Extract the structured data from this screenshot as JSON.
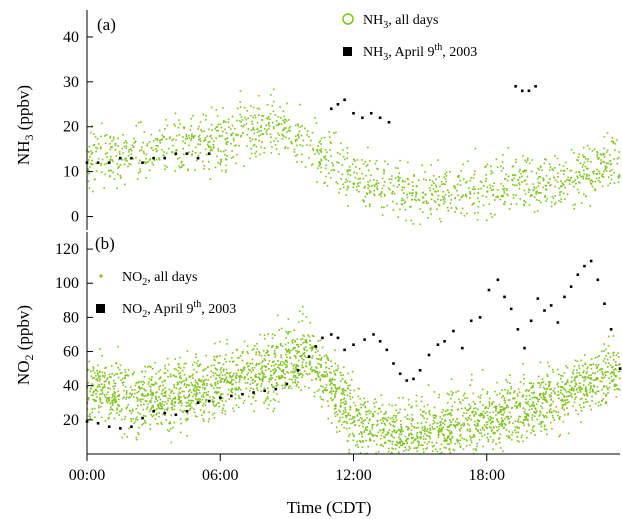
{
  "chart_data": [
    {
      "panel_label": "(a)",
      "type": "scatter",
      "ylabel_main": "NH",
      "ylabel_sub": "3",
      "ylabel_tail": " (ppbv)",
      "ylim": [
        -3,
        46
      ],
      "yticks": [
        0,
        10,
        20,
        30,
        40
      ],
      "xlim": [
        0,
        24
      ],
      "grid": false,
      "legend_position": "top-right",
      "colors": {
        "all_days": "#7dc21e",
        "april9": "#000000"
      },
      "legend": [
        {
          "main": "NH",
          "sub": "3",
          "tail": ", all days",
          "marker": "open-circle"
        },
        {
          "main": "NH",
          "sub": "3",
          "tail": ", April 9",
          "sup": "th",
          "tail2": ", 2003",
          "marker": "filled-square"
        }
      ],
      "series": [
        {
          "name": "NH3, all days",
          "x": [
            0,
            1,
            2,
            3,
            4,
            5,
            6,
            7,
            8,
            9,
            10,
            11,
            12,
            13,
            14,
            15,
            16,
            17,
            18,
            19,
            20,
            21,
            22,
            23,
            24
          ],
          "y": [
            13,
            13,
            14,
            15,
            15,
            16,
            17,
            19,
            20,
            20,
            15,
            12,
            9,
            7,
            6,
            5,
            5,
            6,
            7,
            8,
            8,
            8,
            9,
            11,
            12
          ]
        },
        {
          "name": "NH3, April 9th, 2003",
          "x": [
            0.0,
            0.5,
            1.0,
            1.5,
            2.0,
            2.5,
            3.0,
            3.5,
            4.0,
            4.5,
            5.0,
            5.5,
            11.0,
            11.3,
            11.6,
            12.0,
            12.4,
            12.8,
            13.2,
            13.6,
            19.3,
            19.6,
            19.9,
            20.2
          ],
          "y": [
            12,
            12,
            12,
            13,
            13,
            12,
            13,
            13,
            14,
            14,
            13,
            14,
            24,
            25,
            26,
            23,
            22,
            23,
            22,
            21,
            29,
            28,
            28,
            29
          ]
        }
      ]
    },
    {
      "panel_label": "(b)",
      "type": "scatter",
      "ylabel_main": "NO",
      "ylabel_sub": "2",
      "ylabel_tail": " (ppbv)",
      "xlabel": "Time (CDT)",
      "ylim": [
        0,
        130
      ],
      "yticks": [
        20,
        40,
        60,
        80,
        100,
        120
      ],
      "xlim": [
        0,
        24
      ],
      "xticks": [
        0,
        6,
        12,
        18
      ],
      "xtick_labels": [
        "00:00",
        "06:00",
        "12:00",
        "18:00"
      ],
      "grid": false,
      "legend_position": "top-left",
      "colors": {
        "all_days": "#7dc21e",
        "april9": "#000000"
      },
      "legend": [
        {
          "main": "NO",
          "sub": "2",
          "tail": ", all days",
          "marker": "small-dot"
        },
        {
          "main": "NO",
          "sub": "2",
          "tail": ", April 9",
          "sup": "th",
          "tail2": ", 2003",
          "marker": "filled-square"
        }
      ],
      "series": [
        {
          "name": "NO2, all days",
          "x": [
            0,
            1,
            2,
            3,
            4,
            5,
            6,
            7,
            8,
            9,
            10,
            11,
            12,
            13,
            14,
            15,
            16,
            17,
            18,
            19,
            20,
            21,
            22,
            23,
            24
          ],
          "y": [
            40,
            36,
            32,
            32,
            34,
            38,
            42,
            45,
            48,
            55,
            60,
            40,
            20,
            14,
            12,
            13,
            15,
            18,
            20,
            24,
            28,
            32,
            38,
            45,
            48
          ]
        },
        {
          "name": "NO2, April 9th, 2003",
          "x": [
            0.0,
            0.5,
            1.0,
            1.5,
            2.0,
            2.5,
            3.0,
            3.5,
            4.0,
            4.5,
            5.0,
            5.5,
            6.0,
            6.5,
            7.0,
            7.5,
            8.0,
            8.5,
            9.0,
            9.5,
            10.0,
            10.3,
            10.6,
            11.0,
            11.3,
            11.6,
            12.0,
            12.5,
            12.9,
            13.2,
            13.5,
            13.8,
            14.1,
            14.4,
            14.7,
            15.0,
            15.4,
            15.8,
            16.1,
            16.5,
            16.9,
            17.3,
            17.7,
            18.1,
            18.5,
            18.8,
            19.1,
            19.4,
            19.7,
            20.0,
            20.3,
            20.6,
            20.9,
            21.2,
            21.5,
            21.8,
            22.1,
            22.4,
            22.7,
            23.0,
            23.3,
            23.6,
            24.0
          ],
          "y": [
            19,
            18,
            16,
            15,
            16,
            21,
            25,
            24,
            23,
            25,
            30,
            31,
            33,
            34,
            35,
            36,
            37,
            38,
            41,
            49,
            57,
            63,
            68,
            70,
            68,
            61,
            64,
            67,
            70,
            66,
            61,
            53,
            47,
            43,
            44,
            49,
            58,
            64,
            66,
            72,
            62,
            78,
            80,
            96,
            102,
            92,
            85,
            73,
            62,
            78,
            91,
            84,
            87,
            77,
            92,
            98,
            105,
            110,
            113,
            102,
            88,
            73,
            50
          ]
        }
      ]
    }
  ]
}
